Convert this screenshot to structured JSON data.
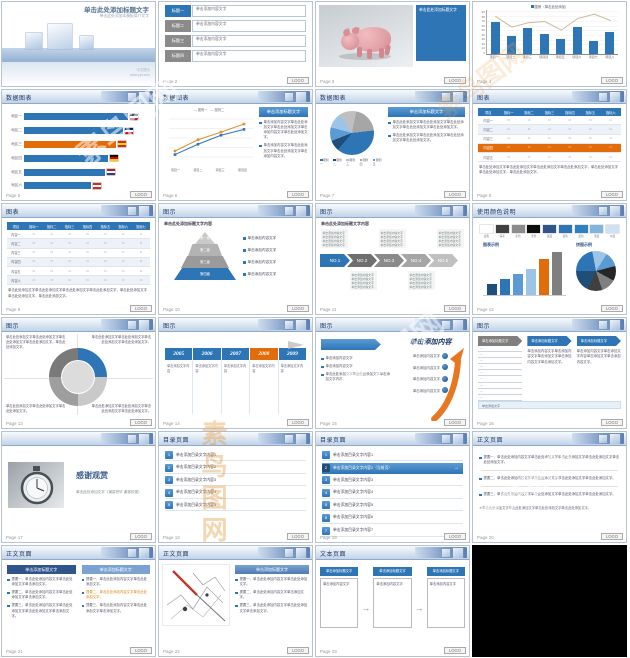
{
  "watermark": {
    "text": "素鸟图网"
  },
  "common": {
    "logo": "LOGO"
  },
  "slides": [
    {
      "type": "cover",
      "title": "单击此处添加标题文字",
      "subtitle": "单击此处添加本模板简介文字",
      "note1": "中文提示",
      "note2": "www.ppt.com"
    },
    {
      "type": "agenda",
      "page": "Page 2",
      "rows": [
        {
          "label": "标题一",
          "color": "#2e75b6",
          "text": "单击添加内容文字"
        },
        {
          "label": "标题二",
          "color": "#8a8a8a",
          "text": "单击添加内容文字"
        },
        {
          "label": "标题三",
          "color": "#8a8a8a",
          "text": "单击添加内容文字"
        },
        {
          "label": "标题四",
          "color": "#8a8a8a",
          "text": "单击添加内容文字"
        }
      ]
    },
    {
      "type": "photo",
      "page": "Page 3",
      "box_title": "单击此处添加标题文字",
      "photo": "pink-pig-figurine"
    },
    {
      "type": "barline",
      "page": "Page 4",
      "legend": "图例（单击此处添加）",
      "bar_color": "#2e75b6",
      "line_color": "#cbbb9e",
      "categories": [
        "项目一",
        "项目二",
        "项目三",
        "项目四",
        "项目五",
        "项目六",
        "项目七",
        "项目八"
      ],
      "bars": [
        72,
        40,
        57,
        45,
        33,
        60,
        30,
        50
      ],
      "line": [
        90,
        65,
        75,
        78,
        58,
        85,
        95,
        80
      ],
      "y_ticks": [
        "90",
        "80",
        "70",
        "60",
        "50",
        "40",
        "30",
        "20",
        "10",
        "0"
      ]
    },
    {
      "type": "hbars",
      "title": "数据图表",
      "page": "Page 5",
      "items": [
        {
          "label": "地区一",
          "value": 93,
          "color": "#2e75b6",
          "flag": [
            "#3c3b6e",
            "#ffffff",
            "#b22234"
          ]
        },
        {
          "label": "地区二",
          "value": 88,
          "color": "#2e75b6",
          "flag": [
            "#00247d",
            "#ffffff",
            "#cf142b"
          ]
        },
        {
          "label": "地区三",
          "value": 82,
          "color": "#e36c0a",
          "flag": [
            "#de2910",
            "#ffde00",
            "#de2910"
          ]
        },
        {
          "label": "地区四",
          "value": 75,
          "color": "#2e75b6",
          "flag": [
            "#000000",
            "#dd0000",
            "#ffce00"
          ]
        },
        {
          "label": "地区五",
          "value": 72,
          "color": "#2e75b6",
          "flag": [
            "#b22234",
            "#ffffff",
            "#3c3b6e"
          ]
        },
        {
          "label": "地区六",
          "value": 60,
          "color": "#2e75b6",
          "flag": [
            "#d52b1e",
            "#ffffff",
            "#d52b1e"
          ]
        }
      ]
    },
    {
      "type": "lines",
      "title": "数据图表",
      "page": "Page 6",
      "legend": "— 图例一　— 图例二",
      "header_box": "单击添加标题文字",
      "x": [
        "项目一",
        "项目二",
        "项目三",
        "项目四"
      ],
      "series": [
        {
          "color": "#e0912f",
          "values": [
            20,
            45,
            62,
            80
          ]
        },
        {
          "color": "#2e75b6",
          "values": [
            12,
            35,
            55,
            68
          ]
        }
      ],
      "bullets": [
        "单击添加内容文字单击此处添加文字单击此处添加文字单击添加内容文字单击此处添加文字。",
        "单击添加内容文字单击此处添加文字单击此处添加文字单击添加内容文字。"
      ]
    },
    {
      "type": "pie",
      "title": "数据图表",
      "page": "Page 7",
      "header_box": "单击添加标题文字",
      "pie": {
        "values": [
          8,
          10,
          12,
          12,
          20,
          38
        ],
        "colors": [
          "#1f4e79",
          "#5b9bd5",
          "#9dc3e6",
          "#bfbfbf",
          "#a6a6a6",
          "#2e75b6"
        ]
      },
      "legend": [
        "图例一",
        "图例二",
        "图例三",
        "图例四",
        "图例五"
      ],
      "legend_colors": [
        "#2e75b6",
        "#1f4e79",
        "#9dc3e6",
        "#a6a6a6",
        "#5b9bd5"
      ],
      "bullets": [
        "单击此处添加文字单击此处添加文字单击此处添加文字单击此处添加文字单击此处添加文字。",
        "单击此处添加文字单击此处添加文字单击此处添加文字单击此处添加文字。"
      ]
    },
    {
      "type": "table",
      "title": "图表",
      "page": "Page 8",
      "cols": [
        "项目",
        "指标一",
        "指标二",
        "指标三",
        "指标四",
        "指标五",
        "指标六"
      ],
      "rows": [
        "内容一",
        "内容二",
        "内容三",
        "内容四",
        "内容五"
      ],
      "cell": "□",
      "highlight": 3,
      "note": "单击此处添加文字单击此处添加文字单击此处添加文字单击此处添加文字，单击此处添加文字单击此处添加文字，单击此处添加文字。"
    },
    {
      "type": "table",
      "title": "图表",
      "page": "Page 9",
      "cols": [
        "项目",
        "指标一",
        "指标二",
        "指标三",
        "指标四",
        "指标五",
        "指标六",
        "指标七"
      ],
      "rows": [
        "内容一",
        "内容二",
        "内容三",
        "内容四",
        "内容五",
        "内容六"
      ],
      "cell": "□",
      "highlight": -1,
      "note": "单击此处添加文字单击此处添加文字单击此处添加文字单击此处添加文字，单击此处添加文字单击此处添加文字，单击此处添加文字。"
    },
    {
      "type": "pyramid",
      "title": "图示",
      "page": "Page 10",
      "intro": "单击此处添加标题文字内容",
      "levels": [
        {
          "label": "第一级",
          "color": "#c9c9c9",
          "text": "单击添加内容文字"
        },
        {
          "label": "第二级",
          "color": "#b3b3b3",
          "text": "单击添加内容文字"
        },
        {
          "label": "第三级",
          "color": "#9a9a9a",
          "text": "单击添加内容文字"
        },
        {
          "label": "第四级",
          "color": "#2e75b6",
          "text": "单击添加内容文字"
        }
      ]
    },
    {
      "type": "chev5",
      "title": "图示",
      "page": "Page 11",
      "intro": "单击此处添加标题文字内容",
      "blurb": "单击添加内容文字",
      "steps": [
        {
          "label": "NO.1",
          "color": "#2e75b6"
        },
        {
          "label": "NO.2",
          "color": "#6f6f6f"
        },
        {
          "label": "NO.3",
          "color": "#8a8a8a"
        },
        {
          "label": "NO.4",
          "color": "#a5a5a5"
        },
        {
          "label": "NO.5",
          "color": "#c0c0c0"
        }
      ]
    },
    {
      "type": "colors",
      "title": "使用颜色说明",
      "page": "Page 12",
      "left_label": "图表示例",
      "right_label": "饼图示例",
      "swatches": [
        {
          "color": "#ffffff",
          "label": "白色"
        },
        {
          "color": "#404040",
          "label": "深灰"
        },
        {
          "color": "#8c8c8c",
          "label": "灰色"
        },
        {
          "color": "#0d0d0d",
          "label": "黑色"
        },
        {
          "color": "#31548c",
          "label": "深蓝"
        },
        {
          "color": "#2e75b6",
          "label": "蓝色"
        },
        {
          "color": "#2f80c3",
          "label": "蓝色"
        },
        {
          "color": "#82b4dd",
          "label": "浅蓝"
        },
        {
          "color": "#cfe2f3",
          "label": "淡蓝"
        }
      ],
      "bars": {
        "values": [
          22,
          32,
          42,
          52,
          72,
          86
        ],
        "colors": [
          "#1f4e79",
          "#2e75b6",
          "#5b9bd5",
          "#9dc3e6",
          "#e36c0a",
          "#7f7f7f"
        ]
      },
      "pie": {
        "values": [
          22,
          12,
          12,
          12,
          12,
          12,
          18
        ],
        "colors": [
          "#2e75b6",
          "#9dc3e6",
          "#5b9bd5",
          "#262626",
          "#808080",
          "#404040",
          "#1f4e79"
        ]
      }
    },
    {
      "type": "donut",
      "title": "图示",
      "page": "Page 13",
      "donut": {
        "values": [
          25,
          25,
          25,
          25
        ],
        "colors": [
          "#2e75b6",
          "#c9c9c9",
          "#9e9e9e",
          "#7a7a7a"
        ]
      },
      "quads": [
        "单击此处添加文字单击此处添加文字单击此处添加文字单击此处添加文字。单击此处添加文字。",
        "单击此处添加文字单击此处添加文字单击此处添加文字单击此处添加文字。",
        "单击此处添加文字单击此处添加文字单击此处添加文字。",
        "单击此处添加文字单击此处添加文字单击此处添加文字单击此处添加文字。"
      ]
    },
    {
      "type": "timeline",
      "title": "图示",
      "page": "Page 14",
      "item_text": "单击添加文字内容",
      "years": [
        {
          "year": "2005",
          "color": "#2e75b6"
        },
        {
          "year": "2006",
          "color": "#2e75b6"
        },
        {
          "year": "2007",
          "color": "#2e75b6"
        },
        {
          "year": "2008",
          "color": "#e36c0a"
        },
        {
          "year": "2009",
          "color": "#2e75b6"
        }
      ]
    },
    {
      "type": "arrow",
      "title": "图示",
      "page": "Page 15",
      "heading": "单击添加内容",
      "bullets": [
        "单击添加内容文字",
        "单击添加内容文字",
        "单击此处添加文字单击此处添加文字单击添加文字内容。"
      ],
      "items": [
        "单击添加内容文字",
        "单击添加内容文字",
        "单击添加内容文字",
        "单击添加内容文字"
      ]
    },
    {
      "type": "chev3",
      "title": "图示",
      "page": "Page 16",
      "list_count": 9,
      "list_char": "—",
      "strip": "单击添加文字",
      "chevrons": [
        {
          "label": "单击添加标题文字",
          "color": "#7f7f7f"
        },
        {
          "label": "单击添加标题文字",
          "color": "#2e75b6"
        },
        {
          "label": "单击添加标题文字",
          "color": "#2e75b6"
        }
      ],
      "text2": "单击添加内容文字单击添加内容文字单击添加文字单击添加内容文字单击添加文字。",
      "text3": "单击添加内容文字单击添加文字内容单击添加文字单击添加内容文字。"
    },
    {
      "type": "thanks",
      "title": "",
      "page": "Page 17",
      "big": "感谢观赏",
      "sub": "单击此处添加文字（演讲完毕 谢谢欣赏）",
      "photo": "stopwatch-photo"
    },
    {
      "type": "toc",
      "title": "目录页面",
      "page": "Page 18",
      "active": -1,
      "items": [
        "单击添加目录文字内容1",
        "单击添加目录文字内容2",
        "单击添加目录文字内容3",
        "单击添加目录文字内容4",
        "单击添加目录文字内容5"
      ]
    },
    {
      "type": "toc",
      "title": "目录页面",
      "page": "Page 19",
      "active": 1,
      "arrow": "→",
      "items": [
        "单击添加目录文字内容1",
        "单击添加目录文字内容2（当前页）",
        "单击添加目录文字内容3",
        "单击添加目录文字内容4",
        "单击添加目录文字内容5",
        "单击添加目录文字内容6",
        "单击添加目录文字内容7"
      ]
    },
    {
      "type": "body",
      "title": "正文页面",
      "page": "Page 20",
      "paras": [
        "提要一、单击此处添加内容文字单击此处添加文字单击此处添加文字单击此处添加文字单击此处添加文字。",
        "提要二、单击此处添加内容文字单击此处添加文字单击此处添加文字单击此处添加文字。",
        "提要三、单击此处添加内容文字单击此处添加文字单击此处添加文字单击此处添加文字。"
      ],
      "note": "＊单击此处添加文字单击此处添加文字单击此处添加文字单击此处添加文字。"
    },
    {
      "type": "cols2",
      "title": "正文页面",
      "page": "Page 21",
      "left": {
        "header": "单击添加标题文字",
        "color": "#31548c",
        "bullets": [
          "提要一、单击此处添加内容文字单击此处添加文字单击添加文字。",
          "提要二、单击此处添加内容文字单击此处添加文字单击添加文字。",
          "提要三、单击此处添加内容文字单击此处添加文字单击此处添加文字单击添加文字。"
        ]
      },
      "right": {
        "header": "单击添加标题文字",
        "color": "#7ba2d0",
        "orange_index": 1,
        "bullets": [
          "提要一、单击此处添加内容文字单击此处添加文字。",
          "提要二、单击此处添加内容文字单击此处添加文字。",
          "提要三、单击此处添加内容文字单击此处添加文字单击添加文字。"
        ]
      }
    },
    {
      "type": "photo-text",
      "title": "正文页面",
      "page": "Page 22",
      "header": "单击添加标题文字",
      "photo": "pencil-sketch",
      "bullets": [
        "提要一、单击此处添加内容文字单击此处添加文字。",
        "提要二、单击此处添加内容文字单击添加文字。",
        "提要三、单击此处添加内容文字单击此处添加文字单击添加文字。"
      ]
    },
    {
      "type": "flow3",
      "title": "文本页面",
      "page": "Page 23",
      "tab": "单击添加标题文字",
      "box_text": "单击添加内容文字"
    },
    {
      "type": "black"
    }
  ]
}
